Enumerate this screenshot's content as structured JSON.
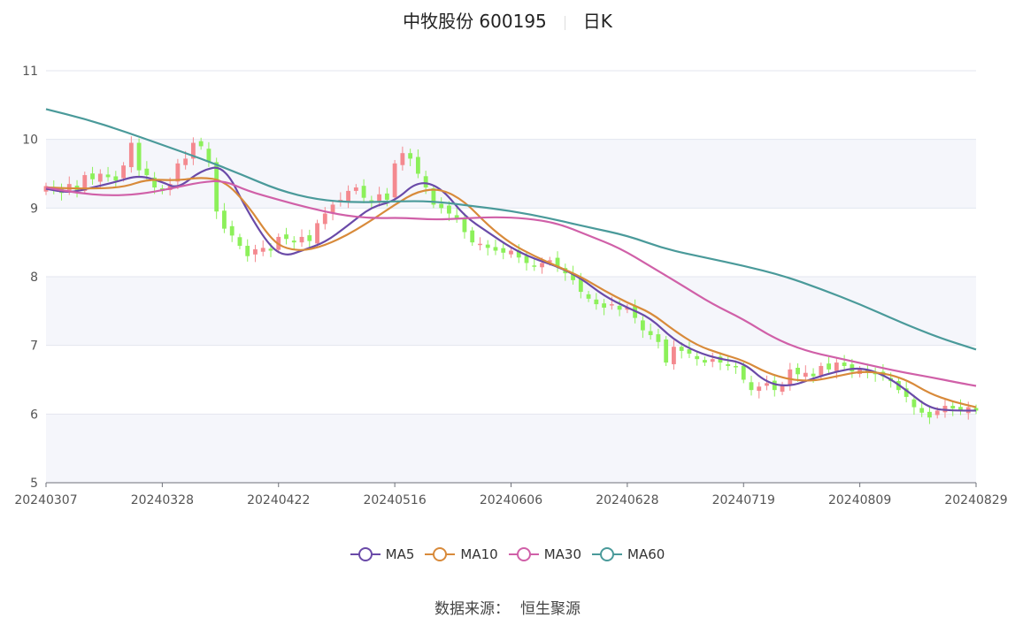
{
  "header": {
    "stock": "中牧股份 600195",
    "period": "日K"
  },
  "source": {
    "label": "数据来源：",
    "value": "恒生聚源"
  },
  "chart_data": {
    "type": "candlestick",
    "title": "中牧股份 600195",
    "subtitle": "日K",
    "ylim": [
      5,
      11
    ],
    "yticks": [
      5,
      6,
      7,
      8,
      9,
      10,
      11
    ],
    "grid": true,
    "legend_position": "bottom",
    "up_color": "#f4898f",
    "down_color": "#8cf05a",
    "x_start_date": "20240307",
    "xticks": [
      {
        "date": "20240307",
        "index": 0
      },
      {
        "date": "20240328",
        "index": 15
      },
      {
        "date": "20240422",
        "index": 30
      },
      {
        "date": "20240516",
        "index": 45
      },
      {
        "date": "20240606",
        "index": 60
      },
      {
        "date": "20240628",
        "index": 75
      },
      {
        "date": "20240719",
        "index": 90
      },
      {
        "date": "20240809",
        "index": 105
      },
      {
        "date": "20240829",
        "index": 120
      }
    ],
    "close": [
      9.32,
      9.28,
      9.22,
      9.35,
      9.25,
      9.48,
      9.42,
      9.5,
      9.45,
      9.4,
      9.62,
      9.95,
      9.55,
      9.48,
      9.3,
      9.25,
      9.35,
      9.65,
      9.72,
      9.95,
      9.9,
      9.68,
      8.95,
      8.7,
      8.6,
      8.45,
      8.3,
      8.4,
      8.42,
      8.38,
      8.58,
      8.55,
      8.5,
      8.58,
      8.52,
      8.78,
      8.92,
      9.05,
      9.12,
      9.25,
      9.3,
      9.15,
      9.1,
      9.2,
      9.12,
      9.65,
      9.8,
      9.72,
      9.5,
      9.3,
      9.05,
      9.0,
      8.92,
      8.85,
      8.65,
      8.5,
      8.48,
      8.42,
      8.38,
      8.35,
      8.38,
      8.28,
      8.2,
      8.15,
      8.2,
      8.24,
      8.15,
      8.05,
      7.95,
      7.78,
      7.68,
      7.6,
      7.55,
      7.6,
      7.52,
      7.55,
      7.4,
      7.22,
      7.15,
      7.05,
      6.75,
      6.98,
      6.92,
      6.88,
      6.8,
      6.75,
      6.8,
      6.75,
      6.7,
      6.68,
      6.5,
      6.35,
      6.4,
      6.45,
      6.35,
      6.42,
      6.65,
      6.58,
      6.6,
      6.55,
      6.7,
      6.65,
      6.75,
      6.7,
      6.62,
      6.65,
      6.6,
      6.58,
      6.55,
      6.48,
      6.35,
      6.25,
      6.1,
      6.02,
      5.95,
      6.05,
      6.12,
      6.08,
      6.05,
      6.1,
      6.05
    ],
    "series": [
      {
        "name": "MA5",
        "color": "#6a4aa8",
        "points": [
          [
            0,
            9.28
          ],
          [
            3,
            9.22
          ],
          [
            6,
            9.3
          ],
          [
            9,
            9.38
          ],
          [
            12,
            9.48
          ],
          [
            15,
            9.38
          ],
          [
            17,
            9.28
          ],
          [
            20,
            9.55
          ],
          [
            23,
            9.62
          ],
          [
            26,
            8.95
          ],
          [
            29,
            8.42
          ],
          [
            31,
            8.3
          ],
          [
            33,
            8.38
          ],
          [
            36,
            8.5
          ],
          [
            39,
            8.75
          ],
          [
            42,
            9.02
          ],
          [
            45,
            9.1
          ],
          [
            48,
            9.4
          ],
          [
            51,
            9.3
          ],
          [
            54,
            8.88
          ],
          [
            57,
            8.65
          ],
          [
            60,
            8.42
          ],
          [
            63,
            8.26
          ],
          [
            66,
            8.15
          ],
          [
            69,
            7.98
          ],
          [
            72,
            7.72
          ],
          [
            75,
            7.55
          ],
          [
            78,
            7.4
          ],
          [
            81,
            7.08
          ],
          [
            84,
            6.9
          ],
          [
            87,
            6.8
          ],
          [
            90,
            6.75
          ],
          [
            93,
            6.45
          ],
          [
            96,
            6.4
          ],
          [
            99,
            6.52
          ],
          [
            102,
            6.62
          ],
          [
            105,
            6.68
          ],
          [
            108,
            6.58
          ],
          [
            111,
            6.35
          ],
          [
            114,
            6.08
          ],
          [
            117,
            6.05
          ],
          [
            120,
            6.05
          ]
        ]
      },
      {
        "name": "MA10",
        "color": "#d88a3a",
        "points": [
          [
            0,
            9.3
          ],
          [
            5,
            9.28
          ],
          [
            10,
            9.3
          ],
          [
            13,
            9.42
          ],
          [
            17,
            9.4
          ],
          [
            20,
            9.45
          ],
          [
            23,
            9.4
          ],
          [
            26,
            9.05
          ],
          [
            29,
            8.55
          ],
          [
            31,
            8.4
          ],
          [
            34,
            8.38
          ],
          [
            38,
            8.55
          ],
          [
            42,
            8.82
          ],
          [
            45,
            9.05
          ],
          [
            48,
            9.25
          ],
          [
            51,
            9.28
          ],
          [
            54,
            9.1
          ],
          [
            57,
            8.75
          ],
          [
            60,
            8.48
          ],
          [
            63,
            8.3
          ],
          [
            66,
            8.15
          ],
          [
            69,
            8.0
          ],
          [
            72,
            7.8
          ],
          [
            75,
            7.62
          ],
          [
            78,
            7.48
          ],
          [
            81,
            7.22
          ],
          [
            84,
            7.0
          ],
          [
            87,
            6.88
          ],
          [
            90,
            6.78
          ],
          [
            93,
            6.6
          ],
          [
            96,
            6.5
          ],
          [
            99,
            6.48
          ],
          [
            102,
            6.55
          ],
          [
            105,
            6.62
          ],
          [
            108,
            6.6
          ],
          [
            111,
            6.5
          ],
          [
            114,
            6.3
          ],
          [
            117,
            6.18
          ],
          [
            120,
            6.1
          ]
        ]
      },
      {
        "name": "MA30",
        "color": "#d060a8",
        "points": [
          [
            0,
            9.3
          ],
          [
            4,
            9.22
          ],
          [
            8,
            9.18
          ],
          [
            12,
            9.2
          ],
          [
            16,
            9.28
          ],
          [
            20,
            9.38
          ],
          [
            23,
            9.4
          ],
          [
            26,
            9.25
          ],
          [
            30,
            9.12
          ],
          [
            34,
            9.0
          ],
          [
            38,
            8.9
          ],
          [
            42,
            8.85
          ],
          [
            46,
            8.86
          ],
          [
            50,
            8.83
          ],
          [
            54,
            8.85
          ],
          [
            58,
            8.87
          ],
          [
            62,
            8.85
          ],
          [
            66,
            8.78
          ],
          [
            70,
            8.6
          ],
          [
            74,
            8.42
          ],
          [
            78,
            8.15
          ],
          [
            82,
            7.88
          ],
          [
            86,
            7.6
          ],
          [
            90,
            7.38
          ],
          [
            94,
            7.1
          ],
          [
            98,
            6.92
          ],
          [
            102,
            6.82
          ],
          [
            106,
            6.72
          ],
          [
            110,
            6.62
          ],
          [
            114,
            6.54
          ],
          [
            118,
            6.45
          ],
          [
            120,
            6.41
          ]
        ]
      },
      {
        "name": "MA60",
        "color": "#4a9a9a",
        "points": [
          [
            0,
            10.44
          ],
          [
            5,
            10.3
          ],
          [
            10,
            10.12
          ],
          [
            15,
            9.92
          ],
          [
            20,
            9.72
          ],
          [
            25,
            9.5
          ],
          [
            30,
            9.26
          ],
          [
            35,
            9.12
          ],
          [
            40,
            9.08
          ],
          [
            45,
            9.1
          ],
          [
            50,
            9.1
          ],
          [
            55,
            9.03
          ],
          [
            60,
            8.96
          ],
          [
            65,
            8.85
          ],
          [
            70,
            8.72
          ],
          [
            75,
            8.6
          ],
          [
            80,
            8.4
          ],
          [
            85,
            8.28
          ],
          [
            90,
            8.16
          ],
          [
            95,
            8.02
          ],
          [
            100,
            7.82
          ],
          [
            105,
            7.6
          ],
          [
            110,
            7.35
          ],
          [
            115,
            7.12
          ],
          [
            120,
            6.94
          ]
        ]
      }
    ]
  }
}
